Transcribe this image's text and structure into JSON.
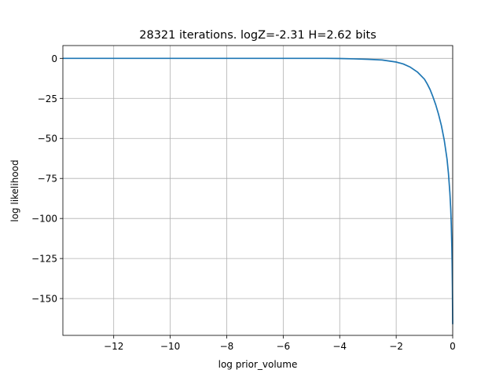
{
  "chart_data": {
    "type": "line",
    "title": "28321 iterations. logZ=-2.31 H=2.62 bits",
    "xlabel": "log prior_volume",
    "ylabel": "log likelihood",
    "xlim": [
      -13.8,
      0.0
    ],
    "ylim": [
      -173,
      8
    ],
    "xticks": [
      -12,
      -10,
      -8,
      -6,
      -4,
      -2,
      0
    ],
    "xtick_labels": [
      "−12",
      "−10",
      "−8",
      "−6",
      "−4",
      "−2",
      "0"
    ],
    "yticks": [
      0,
      -25,
      -50,
      -75,
      -100,
      -125,
      -150
    ],
    "ytick_labels": [
      "0",
      "−25",
      "−50",
      "−75",
      "−100",
      "−125",
      "−150"
    ],
    "grid": true,
    "series": [
      {
        "color": "#1f77b4",
        "x": [
          -13.8,
          -12,
          -10,
          -8,
          -6,
          -4.5,
          -4,
          -3.5,
          -3,
          -2.5,
          -2,
          -1.75,
          -1.5,
          -1.25,
          -1.0,
          -0.9,
          -0.8,
          -0.7,
          -0.6,
          -0.5,
          -0.4,
          -0.3,
          -0.2,
          -0.15,
          -0.1,
          -0.07,
          -0.05,
          -0.03,
          -0.02,
          -0.01,
          0.0
        ],
        "y": [
          0,
          0,
          0,
          0,
          0,
          0,
          -0.1,
          -0.3,
          -0.6,
          -1.0,
          -2.3,
          -3.5,
          -5.5,
          -8.5,
          -13,
          -16,
          -19.5,
          -24,
          -29,
          -35,
          -42,
          -51,
          -63,
          -72,
          -84,
          -94,
          -104,
          -118,
          -128,
          -143,
          -166
        ]
      }
    ]
  }
}
